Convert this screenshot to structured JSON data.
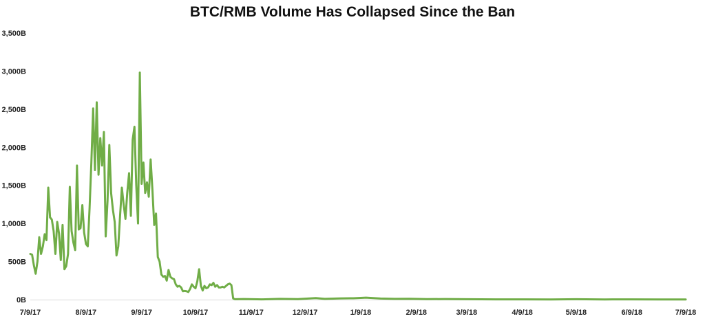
{
  "chart_data": {
    "type": "line",
    "title": "BTC/RMB Volume Has Collapsed Since the Ban",
    "xlabel": "",
    "ylabel": "",
    "ylim": [
      0,
      3500
    ],
    "grid": false,
    "legend": "none",
    "color": "#70ad47",
    "x_ticks": [
      "7/9/17",
      "8/9/17",
      "9/9/17",
      "10/9/17",
      "11/9/17",
      "12/9/17",
      "1/9/18",
      "2/9/18",
      "3/9/18",
      "4/9/18",
      "5/9/18",
      "6/9/18",
      "7/9/18"
    ],
    "y_ticks": [
      {
        "value": 0,
        "label": "0B"
      },
      {
        "value": 500,
        "label": "500B"
      },
      {
        "value": 1000,
        "label": "1,000B"
      },
      {
        "value": 1500,
        "label": "1,500B"
      },
      {
        "value": 2000,
        "label": "2,000B"
      },
      {
        "value": 2500,
        "label": "2,500B"
      },
      {
        "value": 3000,
        "label": "3,000B"
      },
      {
        "value": 3500,
        "label": "3,500B"
      }
    ],
    "series": [
      {
        "points": [
          [
            "2017-07-09",
            600
          ],
          [
            "2017-07-10",
            590
          ],
          [
            "2017-07-11",
            450
          ],
          [
            "2017-07-12",
            340
          ],
          [
            "2017-07-13",
            500
          ],
          [
            "2017-07-14",
            820
          ],
          [
            "2017-07-15",
            600
          ],
          [
            "2017-07-16",
            700
          ],
          [
            "2017-07-17",
            860
          ],
          [
            "2017-07-18",
            780
          ],
          [
            "2017-07-19",
            1470
          ],
          [
            "2017-07-20",
            1080
          ],
          [
            "2017-07-21",
            1050
          ],
          [
            "2017-07-22",
            900
          ],
          [
            "2017-07-23",
            600
          ],
          [
            "2017-07-24",
            1020
          ],
          [
            "2017-07-25",
            870
          ],
          [
            "2017-07-26",
            520
          ],
          [
            "2017-07-27",
            980
          ],
          [
            "2017-07-28",
            400
          ],
          [
            "2017-07-29",
            440
          ],
          [
            "2017-07-30",
            600
          ],
          [
            "2017-07-31",
            1480
          ],
          [
            "2017-08-01",
            900
          ],
          [
            "2017-08-02",
            750
          ],
          [
            "2017-08-03",
            650
          ],
          [
            "2017-08-04",
            1760
          ],
          [
            "2017-08-05",
            920
          ],
          [
            "2017-08-06",
            940
          ],
          [
            "2017-08-07",
            1240
          ],
          [
            "2017-08-08",
            880
          ],
          [
            "2017-08-09",
            730
          ],
          [
            "2017-08-10",
            700
          ],
          [
            "2017-08-11",
            1200
          ],
          [
            "2017-08-12",
            1800
          ],
          [
            "2017-08-13",
            2510
          ],
          [
            "2017-08-14",
            1700
          ],
          [
            "2017-08-15",
            2590
          ],
          [
            "2017-08-16",
            1640
          ],
          [
            "2017-08-17",
            2120
          ],
          [
            "2017-08-18",
            1760
          ],
          [
            "2017-08-19",
            2200
          ],
          [
            "2017-08-20",
            830
          ],
          [
            "2017-08-21",
            1300
          ],
          [
            "2017-08-22",
            2030
          ],
          [
            "2017-08-23",
            1400
          ],
          [
            "2017-08-24",
            1180
          ],
          [
            "2017-08-25",
            1020
          ],
          [
            "2017-08-26",
            580
          ],
          [
            "2017-08-27",
            700
          ],
          [
            "2017-08-28",
            1100
          ],
          [
            "2017-08-29",
            1470
          ],
          [
            "2017-08-30",
            1250
          ],
          [
            "2017-08-31",
            1060
          ],
          [
            "2017-09-01",
            1400
          ],
          [
            "2017-09-02",
            1660
          ],
          [
            "2017-09-03",
            1100
          ],
          [
            "2017-09-04",
            2100
          ],
          [
            "2017-09-05",
            2270
          ],
          [
            "2017-09-06",
            1500
          ],
          [
            "2017-09-07",
            1000
          ],
          [
            "2017-09-08",
            2980
          ],
          [
            "2017-09-09",
            1520
          ],
          [
            "2017-09-10",
            1800
          ],
          [
            "2017-09-11",
            1400
          ],
          [
            "2017-09-12",
            1540
          ],
          [
            "2017-09-13",
            1350
          ],
          [
            "2017-09-14",
            1840
          ],
          [
            "2017-09-15",
            1440
          ],
          [
            "2017-09-16",
            980
          ],
          [
            "2017-09-17",
            1130
          ],
          [
            "2017-09-18",
            560
          ],
          [
            "2017-09-19",
            500
          ],
          [
            "2017-09-20",
            330
          ],
          [
            "2017-09-21",
            300
          ],
          [
            "2017-09-22",
            310
          ],
          [
            "2017-09-23",
            250
          ],
          [
            "2017-09-24",
            390
          ],
          [
            "2017-09-25",
            300
          ],
          [
            "2017-09-26",
            280
          ],
          [
            "2017-09-27",
            270
          ],
          [
            "2017-09-28",
            200
          ],
          [
            "2017-09-29",
            170
          ],
          [
            "2017-09-30",
            180
          ],
          [
            "2017-10-01",
            160
          ],
          [
            "2017-10-02",
            110
          ],
          [
            "2017-10-03",
            115
          ],
          [
            "2017-10-04",
            110
          ],
          [
            "2017-10-05",
            100
          ],
          [
            "2017-10-06",
            140
          ],
          [
            "2017-10-07",
            200
          ],
          [
            "2017-10-08",
            170
          ],
          [
            "2017-10-09",
            150
          ],
          [
            "2017-10-10",
            240
          ],
          [
            "2017-10-11",
            400
          ],
          [
            "2017-10-12",
            180
          ],
          [
            "2017-10-13",
            120
          ],
          [
            "2017-10-14",
            180
          ],
          [
            "2017-10-15",
            150
          ],
          [
            "2017-10-16",
            160
          ],
          [
            "2017-10-17",
            200
          ],
          [
            "2017-10-18",
            190
          ],
          [
            "2017-10-19",
            220
          ],
          [
            "2017-10-20",
            170
          ],
          [
            "2017-10-21",
            190
          ],
          [
            "2017-10-22",
            160
          ],
          [
            "2017-10-23",
            160
          ],
          [
            "2017-10-24",
            170
          ],
          [
            "2017-10-25",
            160
          ],
          [
            "2017-10-26",
            180
          ],
          [
            "2017-10-27",
            200
          ],
          [
            "2017-10-28",
            210
          ],
          [
            "2017-10-29",
            190
          ],
          [
            "2017-10-30",
            15
          ],
          [
            "2017-10-31",
            5
          ],
          [
            "2017-11-05",
            8
          ],
          [
            "2017-11-15",
            4
          ],
          [
            "2017-11-25",
            10
          ],
          [
            "2017-12-05",
            6
          ],
          [
            "2017-12-15",
            20
          ],
          [
            "2017-12-20",
            10
          ],
          [
            "2017-12-28",
            16
          ],
          [
            "2018-01-05",
            18
          ],
          [
            "2018-01-12",
            26
          ],
          [
            "2018-01-20",
            14
          ],
          [
            "2018-01-28",
            10
          ],
          [
            "2018-02-05",
            12
          ],
          [
            "2018-02-15",
            6
          ],
          [
            "2018-02-25",
            8
          ],
          [
            "2018-03-09",
            5
          ],
          [
            "2018-03-25",
            4
          ],
          [
            "2018-04-09",
            4
          ],
          [
            "2018-04-25",
            3
          ],
          [
            "2018-05-09",
            5
          ],
          [
            "2018-05-25",
            3
          ],
          [
            "2018-06-09",
            4
          ],
          [
            "2018-06-25",
            3
          ],
          [
            "2018-07-09",
            2
          ]
        ]
      }
    ]
  }
}
